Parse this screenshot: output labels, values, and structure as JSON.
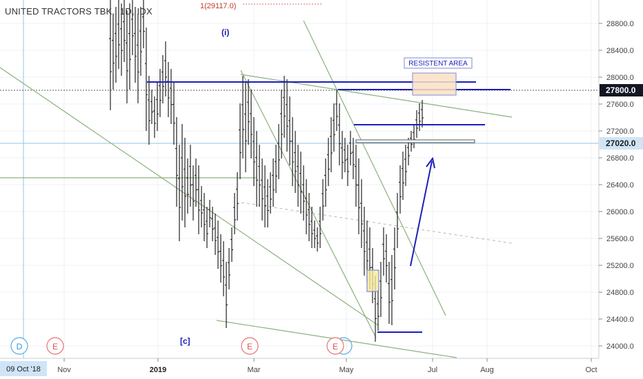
{
  "header": {
    "title": "UNITED TRACTORS TBK., 1D, IDX"
  },
  "chart_data": {
    "type": "candlestick-ohlc",
    "title": "UNITED TRACTORS TBK., 1D, IDX",
    "ylim": [
      23900,
      29400
    ],
    "y_ticks": [
      24000,
      24400,
      24800,
      25200,
      25600,
      26000,
      26400,
      26800,
      27200,
      27600,
      28000,
      28400,
      28800
    ],
    "y_tick_labels": [
      "24000.0",
      "24400.0",
      "24800.0",
      "25200.0",
      "25600.0",
      "26000.0",
      "26400.0",
      "26800.0",
      "27200.0",
      "27600.0",
      "28000.0",
      "28400.0",
      "28800.0"
    ],
    "x_ticks": [
      {
        "label": "Nov",
        "bold": false
      },
      {
        "label": "2019",
        "bold": true
      },
      {
        "label": "Mar",
        "bold": false
      },
      {
        "label": "May",
        "bold": false
      },
      {
        "label": "Jul",
        "bold": false
      },
      {
        "label": "Aug",
        "bold": false
      },
      {
        "label": "Oct",
        "bold": false
      }
    ],
    "price_badges": [
      {
        "label": "27800.0",
        "value": 27800,
        "style": "dark"
      },
      {
        "label": "27020.0",
        "value": 27020,
        "style": "light"
      }
    ],
    "crosshair_date": "09 Oct '18",
    "annotations": {
      "top_label": "1(29117.0)",
      "wave_i": "(i)",
      "wave_c": "[c]",
      "resistance": "RESISTENT AREA"
    },
    "event_markers": [
      "D",
      "E",
      "E",
      "E"
    ],
    "colors": {
      "bars": "#222222",
      "trend_green": "#8ab17d",
      "level_blue": "#1a1fb8",
      "crosshair": "#8fc3e8",
      "resist_fill": "#fbe0c4"
    }
  }
}
